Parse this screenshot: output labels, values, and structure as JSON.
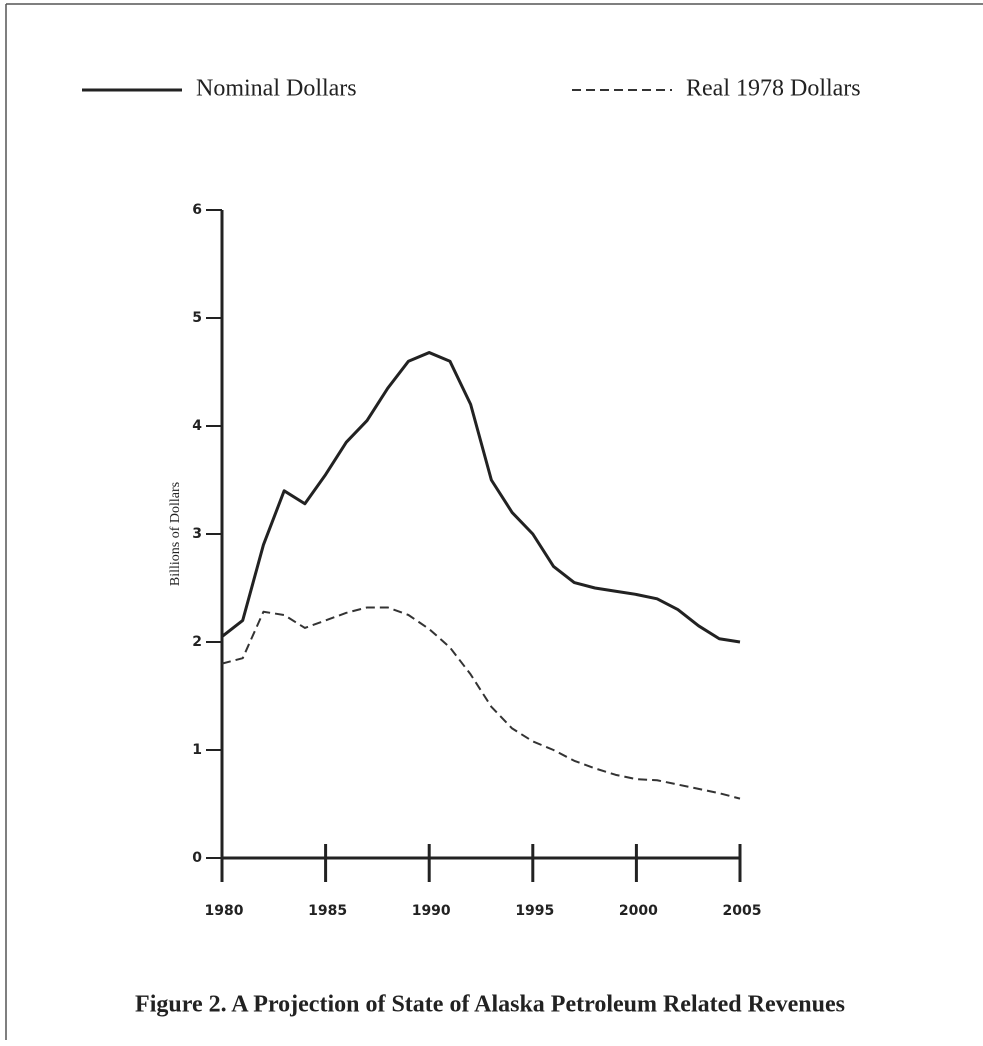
{
  "chart_data": {
    "type": "line",
    "title": "Figure 2. A Projection of State of Alaska Petroleum Related Revenues",
    "y_label": "Billions of Dollars",
    "x": [
      1980,
      1981,
      1982,
      1983,
      1984,
      1985,
      1986,
      1987,
      1988,
      1989,
      1990,
      1991,
      1992,
      1993,
      1994,
      1995,
      1996,
      1997,
      1998,
      1999,
      2000,
      2001,
      2002,
      2003,
      2004,
      2005
    ],
    "series": [
      {
        "name": "Nominal Dollars",
        "color": "#222222",
        "dash": "solid",
        "values": [
          2.05,
          2.2,
          2.9,
          3.4,
          3.28,
          3.55,
          3.85,
          4.05,
          4.35,
          4.6,
          4.68,
          4.6,
          4.2,
          3.5,
          3.2,
          3.0,
          2.7,
          2.55,
          2.5,
          2.47,
          2.44,
          2.4,
          2.3,
          2.15,
          2.03,
          2.0
        ]
      },
      {
        "name": "Real 1978 Dollars",
        "color": "#333333",
        "dash": "dashed",
        "values": [
          1.8,
          1.85,
          2.28,
          2.25,
          2.13,
          2.2,
          2.27,
          2.32,
          2.32,
          2.25,
          2.12,
          1.95,
          1.7,
          1.4,
          1.2,
          1.08,
          1.0,
          0.9,
          0.83,
          0.77,
          0.73,
          0.72,
          0.68,
          0.64,
          0.6,
          0.55
        ]
      }
    ],
    "xlim": [
      1980,
      2005
    ],
    "xticks": [
      1980,
      1985,
      1990,
      1995,
      2000,
      2005
    ],
    "ylim": [
      0,
      6
    ],
    "yticks": [
      0,
      1,
      2,
      3,
      4,
      5,
      6
    ]
  }
}
